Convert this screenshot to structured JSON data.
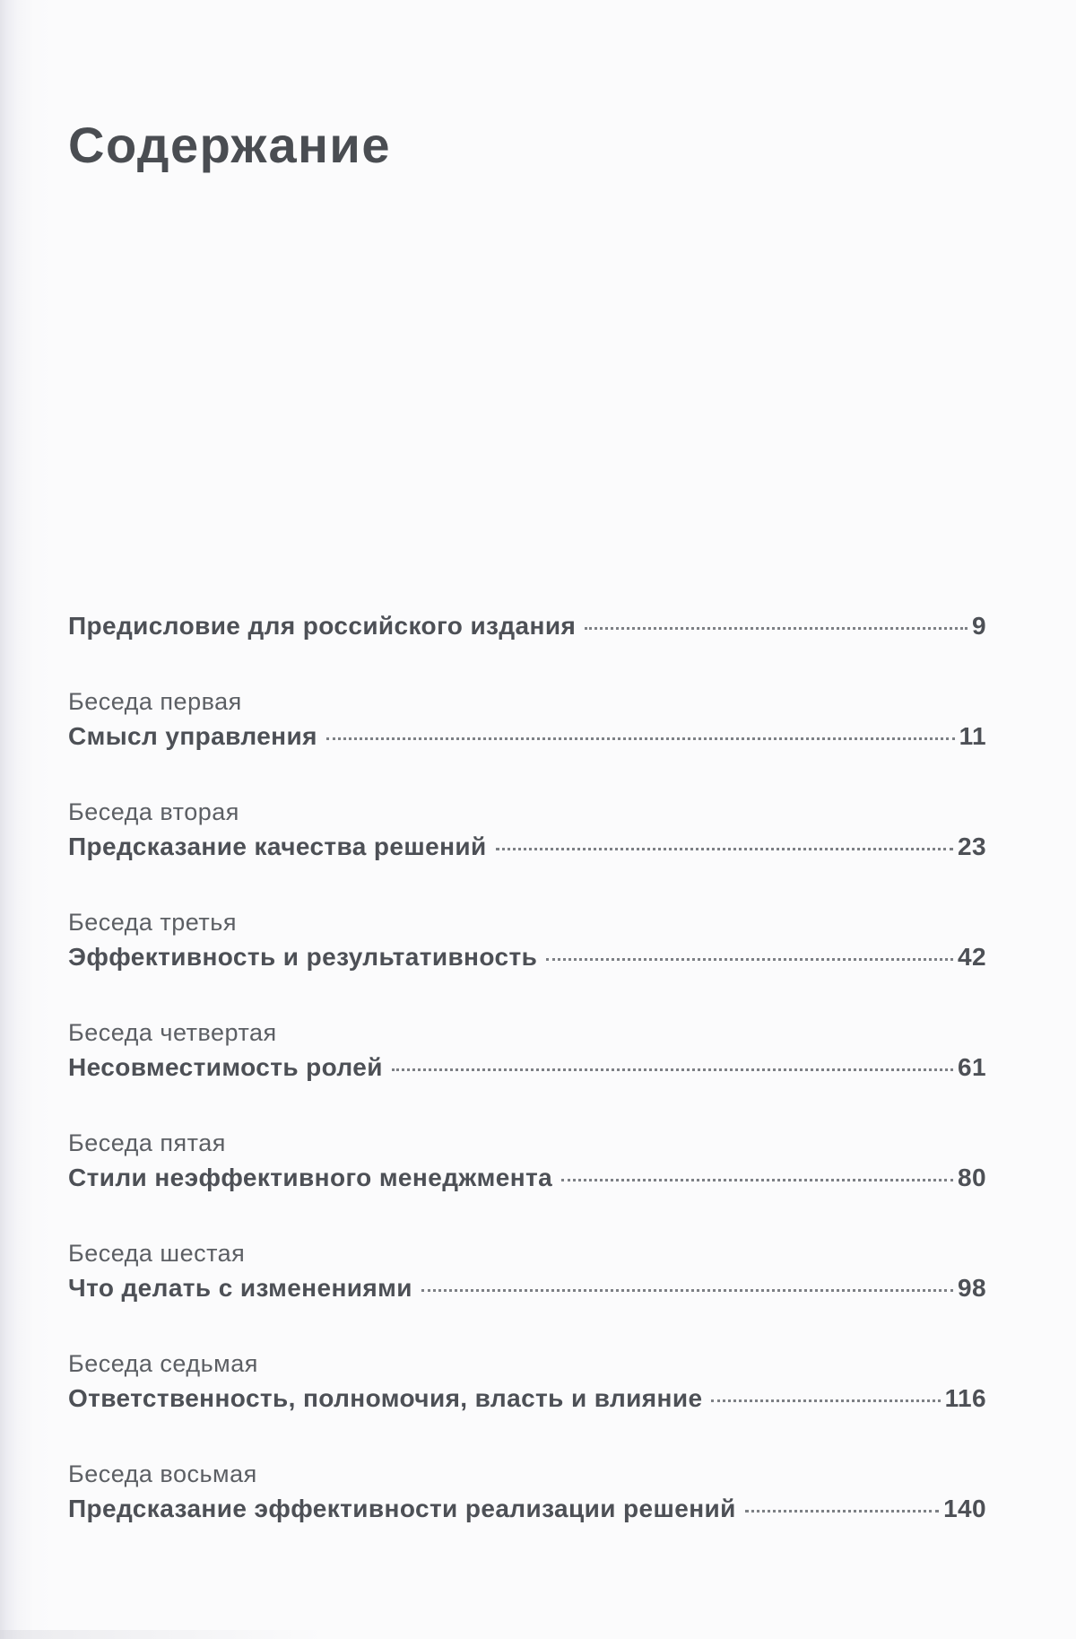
{
  "page": {
    "title": "Содержание",
    "colors": {
      "text_primary": "#4d5056",
      "text_secondary": "#5c5f64",
      "paper": "#fbfbfc",
      "left_edge_shade": "#e3e3e9",
      "dot_leader": "#7d8085"
    },
    "toc": {
      "entries": [
        {
          "label": null,
          "title": "Предисловие для российского издания",
          "page": "9"
        },
        {
          "label": "Беседа первая",
          "title": "Смысл управления",
          "page": "11"
        },
        {
          "label": "Беседа вторая",
          "title": "Предсказание качества решений",
          "page": "23"
        },
        {
          "label": "Беседа третья",
          "title": "Эффективность и результативность",
          "page": "42"
        },
        {
          "label": "Беседа четвертая",
          "title": "Несовместимость ролей",
          "page": "61"
        },
        {
          "label": "Беседа пятая",
          "title": "Стили неэффективного менеджмента",
          "page": "80"
        },
        {
          "label": "Беседа шестая",
          "title": "Что делать с изменениями",
          "page": "98"
        },
        {
          "label": "Беседа седьмая",
          "title": "Ответственность, полномочия, власть и влияние",
          "page": "116"
        },
        {
          "label": "Беседа восьмая",
          "title": "Предсказание эффективности реализации решений",
          "page": "140"
        }
      ]
    }
  }
}
